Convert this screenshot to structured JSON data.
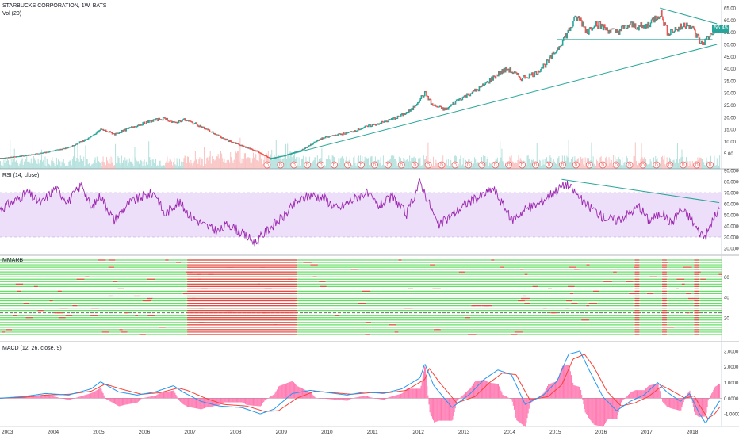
{
  "header": {
    "symbol_title": "STARBUCKS CORPORATION, 1W, BATS",
    "vol_title": "Vol (20)",
    "rsi_title": "RSI (14, close)",
    "mmarb_title": "MMARB",
    "macd_title": "MACD (12, 26, close, 9)",
    "last_price": "56.45"
  },
  "colors": {
    "up": "#26a69a",
    "down": "#ef5350",
    "rsi_line": "#9c27b0",
    "rsi_band": "#e9d7f7",
    "macd_line": "#2196f3",
    "signal_line": "#f44336",
    "hist": "#ff5fa2",
    "trendline": "#26a69a",
    "mmarb_green": "#66dd66",
    "mmarb_red": "#ee4444"
  },
  "chart_data": [
    {
      "type": "line",
      "name": "price",
      "xlim": [
        2003,
        2018.8
      ],
      "ylim": [
        0,
        67
      ],
      "y_ticks": [
        "5.00",
        "10.00",
        "15.00",
        "20.00",
        "25.00",
        "30.00",
        "35.00",
        "40.00",
        "45.00",
        "50.00",
        "55.00",
        "60.00",
        "65.00"
      ],
      "points": [
        [
          2003.0,
          3.0
        ],
        [
          2003.5,
          4.0
        ],
        [
          2004.0,
          5.5
        ],
        [
          2004.5,
          7.5
        ],
        [
          2005.0,
          12.0
        ],
        [
          2005.2,
          15.0
        ],
        [
          2005.5,
          13.0
        ],
        [
          2005.9,
          16.0
        ],
        [
          2006.3,
          18.5
        ],
        [
          2006.6,
          19.5
        ],
        [
          2006.8,
          17.5
        ],
        [
          2007.0,
          19.0
        ],
        [
          2007.3,
          17.0
        ],
        [
          2007.6,
          14.0
        ],
        [
          2007.9,
          11.0
        ],
        [
          2008.3,
          8.0
        ],
        [
          2008.6,
          6.0
        ],
        [
          2008.9,
          3.0
        ],
        [
          2009.2,
          4.0
        ],
        [
          2009.6,
          6.5
        ],
        [
          2010.0,
          11.0
        ],
        [
          2010.3,
          12.5
        ],
        [
          2010.6,
          13.5
        ],
        [
          2011.0,
          16.0
        ],
        [
          2011.4,
          18.0
        ],
        [
          2011.7,
          20.0
        ],
        [
          2012.0,
          23.0
        ],
        [
          2012.2,
          28.0
        ],
        [
          2012.3,
          30.0
        ],
        [
          2012.45,
          25.0
        ],
        [
          2012.75,
          23.0
        ],
        [
          2013.0,
          27.0
        ],
        [
          2013.5,
          32.0
        ],
        [
          2013.9,
          38.0
        ],
        [
          2014.1,
          40.0
        ],
        [
          2014.4,
          36.0
        ],
        [
          2014.7,
          38.0
        ],
        [
          2015.0,
          43.0
        ],
        [
          2015.25,
          50.0
        ],
        [
          2015.45,
          56.0
        ],
        [
          2015.6,
          61.0
        ],
        [
          2015.7,
          60.0
        ],
        [
          2015.85,
          55.0
        ],
        [
          2016.0,
          59.0
        ],
        [
          2016.2,
          57.0
        ],
        [
          2016.45,
          55.0
        ],
        [
          2016.8,
          58.0
        ],
        [
          2017.1,
          57.0
        ],
        [
          2017.45,
          63.0
        ],
        [
          2017.6,
          55.0
        ],
        [
          2017.9,
          57.0
        ],
        [
          2018.05,
          59.0
        ],
        [
          2018.2,
          55.0
        ],
        [
          2018.35,
          50.0
        ],
        [
          2018.5,
          53.0
        ],
        [
          2018.65,
          56.5
        ]
      ],
      "volume_base": 2,
      "trendlines": [
        {
          "from": [
            2008.9,
            2.5
          ],
          "to": [
            2018.7,
            50.0
          ]
        },
        {
          "from": [
            2017.45,
            65.0
          ],
          "to": [
            2018.7,
            58.5
          ]
        },
        {
          "from": [
            2015.2,
            52.0
          ],
          "to": [
            2018.6,
            52.0
          ]
        }
      ],
      "hline": 58.0,
      "dividend_markers": {
        "from": 2008.85,
        "to": 2018.55,
        "count": 34,
        "glyph": "D"
      }
    },
    {
      "type": "line",
      "name": "rsi",
      "xlim": [
        2003,
        2018.8
      ],
      "ylim": [
        15,
        90
      ],
      "band": [
        30,
        70
      ],
      "y_ticks": [
        "20.0000",
        "30.0000",
        "40.0000",
        "50.0000",
        "60.0000",
        "70.0000",
        "80.0000",
        "90.0000"
      ],
      "points": [
        [
          2003.0,
          55
        ],
        [
          2003.3,
          62
        ],
        [
          2003.6,
          70
        ],
        [
          2003.9,
          60
        ],
        [
          2004.2,
          74
        ],
        [
          2004.5,
          62
        ],
        [
          2004.8,
          78
        ],
        [
          2005.0,
          55
        ],
        [
          2005.2,
          68
        ],
        [
          2005.5,
          45
        ],
        [
          2005.8,
          60
        ],
        [
          2006.1,
          66
        ],
        [
          2006.4,
          70
        ],
        [
          2006.6,
          50
        ],
        [
          2006.9,
          62
        ],
        [
          2007.2,
          48
        ],
        [
          2007.5,
          40
        ],
        [
          2007.8,
          35
        ],
        [
          2008.0,
          42
        ],
        [
          2008.3,
          33
        ],
        [
          2008.6,
          25
        ],
        [
          2008.9,
          38
        ],
        [
          2009.2,
          48
        ],
        [
          2009.5,
          62
        ],
        [
          2009.8,
          68
        ],
        [
          2010.1,
          65
        ],
        [
          2010.4,
          55
        ],
        [
          2010.7,
          63
        ],
        [
          2011.0,
          70
        ],
        [
          2011.3,
          58
        ],
        [
          2011.6,
          66
        ],
        [
          2011.9,
          50
        ],
        [
          2012.2,
          80
        ],
        [
          2012.4,
          60
        ],
        [
          2012.6,
          40
        ],
        [
          2012.9,
          50
        ],
        [
          2013.2,
          60
        ],
        [
          2013.5,
          66
        ],
        [
          2013.8,
          74
        ],
        [
          2014.0,
          60
        ],
        [
          2014.2,
          45
        ],
        [
          2014.5,
          55
        ],
        [
          2014.8,
          60
        ],
        [
          2015.1,
          70
        ],
        [
          2015.4,
          78
        ],
        [
          2015.6,
          70
        ],
        [
          2015.8,
          60
        ],
        [
          2016.0,
          55
        ],
        [
          2016.2,
          48
        ],
        [
          2016.5,
          45
        ],
        [
          2016.8,
          52
        ],
        [
          2017.0,
          58
        ],
        [
          2017.2,
          45
        ],
        [
          2017.5,
          52
        ],
        [
          2017.7,
          42
        ],
        [
          2017.9,
          55
        ],
        [
          2018.1,
          48
        ],
        [
          2018.3,
          35
        ],
        [
          2018.45,
          30
        ],
        [
          2018.6,
          45
        ],
        [
          2018.75,
          55
        ]
      ],
      "trendline": {
        "from": [
          2015.3,
          82
        ],
        "to": [
          2018.75,
          61
        ]
      }
    },
    {
      "type": "heatmap",
      "name": "mmarb",
      "ylim": [
        0,
        78
      ],
      "y_ticks": [
        "20",
        "40",
        "60"
      ],
      "rows": 32,
      "red_spans": [
        [
          2007.1,
          2009.5
        ],
        [
          2016.9,
          2017.0
        ],
        [
          2017.5,
          2017.6
        ],
        [
          2018.2,
          2018.3
        ]
      ],
      "dashed_rows": [
        12,
        22
      ]
    },
    {
      "type": "line",
      "name": "macd",
      "xlim": [
        2003,
        2018.8
      ],
      "ylim": [
        -1.6,
        3.4
      ],
      "y_ticks": [
        "-1.0000",
        "0.0000",
        "1.0000",
        "2.0000",
        "3.0000"
      ],
      "macd": [
        [
          2003.0,
          0.0
        ],
        [
          2003.5,
          0.1
        ],
        [
          2004.0,
          0.3
        ],
        [
          2004.5,
          0.2
        ],
        [
          2005.0,
          0.6
        ],
        [
          2005.2,
          1.05
        ],
        [
          2005.6,
          0.4
        ],
        [
          2006.0,
          0.2
        ],
        [
          2006.4,
          0.4
        ],
        [
          2006.8,
          0.8
        ],
        [
          2007.0,
          0.4
        ],
        [
          2007.4,
          -0.2
        ],
        [
          2007.8,
          -0.5
        ],
        [
          2008.3,
          -0.6
        ],
        [
          2008.7,
          -1.0
        ],
        [
          2009.0,
          -0.7
        ],
        [
          2009.4,
          0.3
        ],
        [
          2009.8,
          0.5
        ],
        [
          2010.2,
          0.35
        ],
        [
          2010.6,
          0.2
        ],
        [
          2011.0,
          0.4
        ],
        [
          2011.4,
          0.3
        ],
        [
          2011.8,
          0.6
        ],
        [
          2012.2,
          1.3
        ],
        [
          2012.3,
          2.2
        ],
        [
          2012.5,
          0.8
        ],
        [
          2012.9,
          -0.6
        ],
        [
          2013.3,
          0.3
        ],
        [
          2013.6,
          1.2
        ],
        [
          2013.9,
          1.8
        ],
        [
          2014.2,
          1.5
        ],
        [
          2014.5,
          -0.4
        ],
        [
          2014.9,
          0.2
        ],
        [
          2015.2,
          1.1
        ],
        [
          2015.45,
          2.8
        ],
        [
          2015.7,
          3.0
        ],
        [
          2015.9,
          1.8
        ],
        [
          2016.2,
          0.1
        ],
        [
          2016.5,
          -0.8
        ],
        [
          2016.8,
          -0.2
        ],
        [
          2017.1,
          0.2
        ],
        [
          2017.4,
          1.0
        ],
        [
          2017.6,
          0.4
        ],
        [
          2017.9,
          -0.2
        ],
        [
          2018.1,
          0.3
        ],
        [
          2018.3,
          -0.9
        ],
        [
          2018.45,
          -1.6
        ],
        [
          2018.6,
          -0.9
        ],
        [
          2018.75,
          -0.2
        ]
      ],
      "signal": [
        [
          2003.0,
          0.0
        ],
        [
          2003.5,
          0.05
        ],
        [
          2004.0,
          0.2
        ],
        [
          2004.5,
          0.25
        ],
        [
          2005.0,
          0.45
        ],
        [
          2005.3,
          0.9
        ],
        [
          2005.7,
          0.55
        ],
        [
          2006.1,
          0.25
        ],
        [
          2006.5,
          0.35
        ],
        [
          2006.9,
          0.65
        ],
        [
          2007.1,
          0.5
        ],
        [
          2007.5,
          0.0
        ],
        [
          2007.9,
          -0.4
        ],
        [
          2008.4,
          -0.5
        ],
        [
          2008.8,
          -0.85
        ],
        [
          2009.1,
          -0.8
        ],
        [
          2009.5,
          0.0
        ],
        [
          2009.9,
          0.45
        ],
        [
          2010.3,
          0.35
        ],
        [
          2010.7,
          0.25
        ],
        [
          2011.1,
          0.35
        ],
        [
          2011.5,
          0.35
        ],
        [
          2011.9,
          0.5
        ],
        [
          2012.3,
          1.2
        ],
        [
          2012.4,
          1.9
        ],
        [
          2012.6,
          1.1
        ],
        [
          2013.0,
          -0.3
        ],
        [
          2013.4,
          0.1
        ],
        [
          2013.7,
          0.95
        ],
        [
          2014.0,
          1.6
        ],
        [
          2014.3,
          1.5
        ],
        [
          2014.6,
          -0.1
        ],
        [
          2015.0,
          0.1
        ],
        [
          2015.3,
          0.85
        ],
        [
          2015.55,
          2.5
        ],
        [
          2015.8,
          2.8
        ],
        [
          2016.0,
          2.0
        ],
        [
          2016.3,
          0.4
        ],
        [
          2016.6,
          -0.5
        ],
        [
          2016.9,
          -0.3
        ],
        [
          2017.2,
          0.1
        ],
        [
          2017.5,
          0.8
        ],
        [
          2017.7,
          0.5
        ],
        [
          2018.0,
          0.0
        ],
        [
          2018.2,
          0.15
        ],
        [
          2018.35,
          -0.6
        ],
        [
          2018.5,
          -1.3
        ],
        [
          2018.65,
          -1.0
        ],
        [
          2018.78,
          -0.5
        ]
      ]
    }
  ],
  "x_axis": {
    "xlim": [
      2003,
      2018.8
    ],
    "labels": [
      {
        "x": 2003.0,
        "text": "2003"
      },
      {
        "x": 2004.0,
        "text": "2004"
      },
      {
        "x": 2005.0,
        "text": "2005"
      },
      {
        "x": 2006.0,
        "text": "2006"
      },
      {
        "x": 2007.0,
        "text": "2007"
      },
      {
        "x": 2008.0,
        "text": "2008"
      },
      {
        "x": 2009.0,
        "text": "2009"
      },
      {
        "x": 2010.0,
        "text": "2010"
      },
      {
        "x": 2011.0,
        "text": "2011"
      },
      {
        "x": 2012.0,
        "text": "2012"
      },
      {
        "x": 2013.0,
        "text": "2013"
      },
      {
        "x": 2014.0,
        "text": "2014"
      },
      {
        "x": 2015.0,
        "text": "2015"
      },
      {
        "x": 2016.0,
        "text": "2016"
      },
      {
        "x": 2017.0,
        "text": "2017"
      },
      {
        "x": 2018.0,
        "text": "2018"
      }
    ]
  }
}
